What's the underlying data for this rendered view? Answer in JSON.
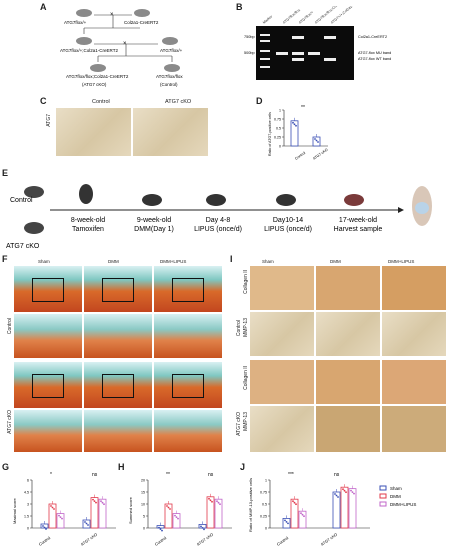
{
  "panels": {
    "A": {
      "label": "A",
      "row1_left": "ATG7flox/+",
      "row1_right": "Col2a1-CreERT2",
      "row2_left": "ATG7flox/+;Col2a1-CreERT2",
      "row2_right": "ATG7flox/+",
      "row3_left": "ATG7flox/flox;Col2a1-CreERT2",
      "row3_left_sub": "(ATG7 cKO)",
      "row3_right": "ATG7flox/flox",
      "row3_right_sub": "(Control)",
      "cross": "×"
    },
    "B": {
      "label": "B",
      "lane_labels": [
        "Marker",
        "ATG7flox/flox",
        "ATG7flox/+",
        "ATG7flox/flox;Col2a1-CreERT2",
        "ATG7+/+;Col2a1-CreERT2"
      ],
      "size_top": "750bp",
      "size_bottom": "500bp",
      "band_top": "Col2a1-CreERT2",
      "band_mid": "ATG7-flox MU band",
      "band_bot": "ATG7-flox WT band"
    },
    "C": {
      "label": "C",
      "col1": "Control",
      "col2": "ATG7 cKO",
      "row": "ATG7"
    },
    "D": {
      "label": "D",
      "ylabel": "Ratio of ATG7-positive cells",
      "sig": "**",
      "xlabels": [
        "Control",
        "ATG7 cKO"
      ]
    },
    "E": {
      "label": "E",
      "group1": "Control",
      "group2": "ATG7 cKO",
      "steps": [
        {
          "t1": "8-week-old",
          "t2": "Tamoxifen"
        },
        {
          "t1": "9-week-old",
          "t2": "DMM(Day 1)"
        },
        {
          "t1": "Day 4-8",
          "t2": "LIPUS (once/d)"
        },
        {
          "t1": "Day10-14",
          "t2": "LIPUS (once/d)"
        },
        {
          "t1": "17-week-old",
          "t2": "Harvest  sample"
        }
      ]
    },
    "F": {
      "label": "F",
      "cols": [
        "Sham",
        "DMM",
        "DMM+LIPUS"
      ],
      "rows": [
        "Control",
        "ATG7 cKO"
      ]
    },
    "I": {
      "label": "I",
      "cols": [
        "Sham",
        "DMM",
        "DMM+LIPUS"
      ],
      "groups": [
        "Control",
        "ATG7 cKO"
      ],
      "stains": [
        "Collagen II",
        "MMP-13"
      ]
    },
    "G": {
      "label": "G",
      "ylabel": "Maximal score",
      "sig": [
        "*",
        "ns"
      ],
      "xlabels": [
        "Control",
        "ATG7 cKO"
      ]
    },
    "H": {
      "label": "H",
      "ylabel": "Summed score",
      "sig": [
        "**",
        "ns"
      ],
      "xlabels": [
        "Control",
        "ATG7 cKO"
      ]
    },
    "J": {
      "label": "J",
      "ylabel": "Ratio of MMP-13-positive cells",
      "sig": [
        "***",
        "ns"
      ],
      "xlabels": [
        "Control",
        "ATG7 cKO"
      ],
      "legend": [
        "Sham",
        "DMM",
        "DMM+LIPUS"
      ]
    }
  },
  "colors": {
    "sham": "#3a4fb5",
    "dmm": "#e2384a",
    "lipus": "#c064c9"
  },
  "chart_data": [
    {
      "type": "bar",
      "title": "",
      "ylabel": "Ratio of ATG7-positive cells",
      "categories": [
        "Control",
        "ATG7 cKO"
      ],
      "values": [
        0.7,
        0.25
      ],
      "ylim": [
        0,
        1.0
      ]
    },
    {
      "type": "bar",
      "title": "",
      "ylabel": "Maximal score",
      "categories": [
        "Control",
        "ATG7 cKO"
      ],
      "series": [
        {
          "name": "Sham",
          "values": [
            0.5,
            1.0
          ]
        },
        {
          "name": "DMM",
          "values": [
            3.0,
            3.8
          ]
        },
        {
          "name": "DMM+LIPUS",
          "values": [
            1.8,
            3.6
          ]
        }
      ],
      "ylim": [
        0,
        6
      ]
    },
    {
      "type": "bar",
      "title": "",
      "ylabel": "Summed score",
      "categories": [
        "Control",
        "ATG7 cKO"
      ],
      "series": [
        {
          "name": "Sham",
          "values": [
            1.0,
            1.5
          ]
        },
        {
          "name": "DMM",
          "values": [
            10,
            13
          ]
        },
        {
          "name": "DMM+LIPUS",
          "values": [
            6,
            12
          ]
        }
      ],
      "ylim": [
        0,
        20
      ]
    },
    {
      "type": "bar",
      "title": "",
      "ylabel": "Ratio of MMP-13-positive cells",
      "categories": [
        "Control",
        "ATG7 cKO"
      ],
      "series": [
        {
          "name": "Sham",
          "values": [
            0.2,
            0.75
          ]
        },
        {
          "name": "DMM",
          "values": [
            0.6,
            0.85
          ]
        },
        {
          "name": "DMM+LIPUS",
          "values": [
            0.35,
            0.82
          ]
        }
      ],
      "ylim": [
        0,
        1.0
      ]
    }
  ]
}
